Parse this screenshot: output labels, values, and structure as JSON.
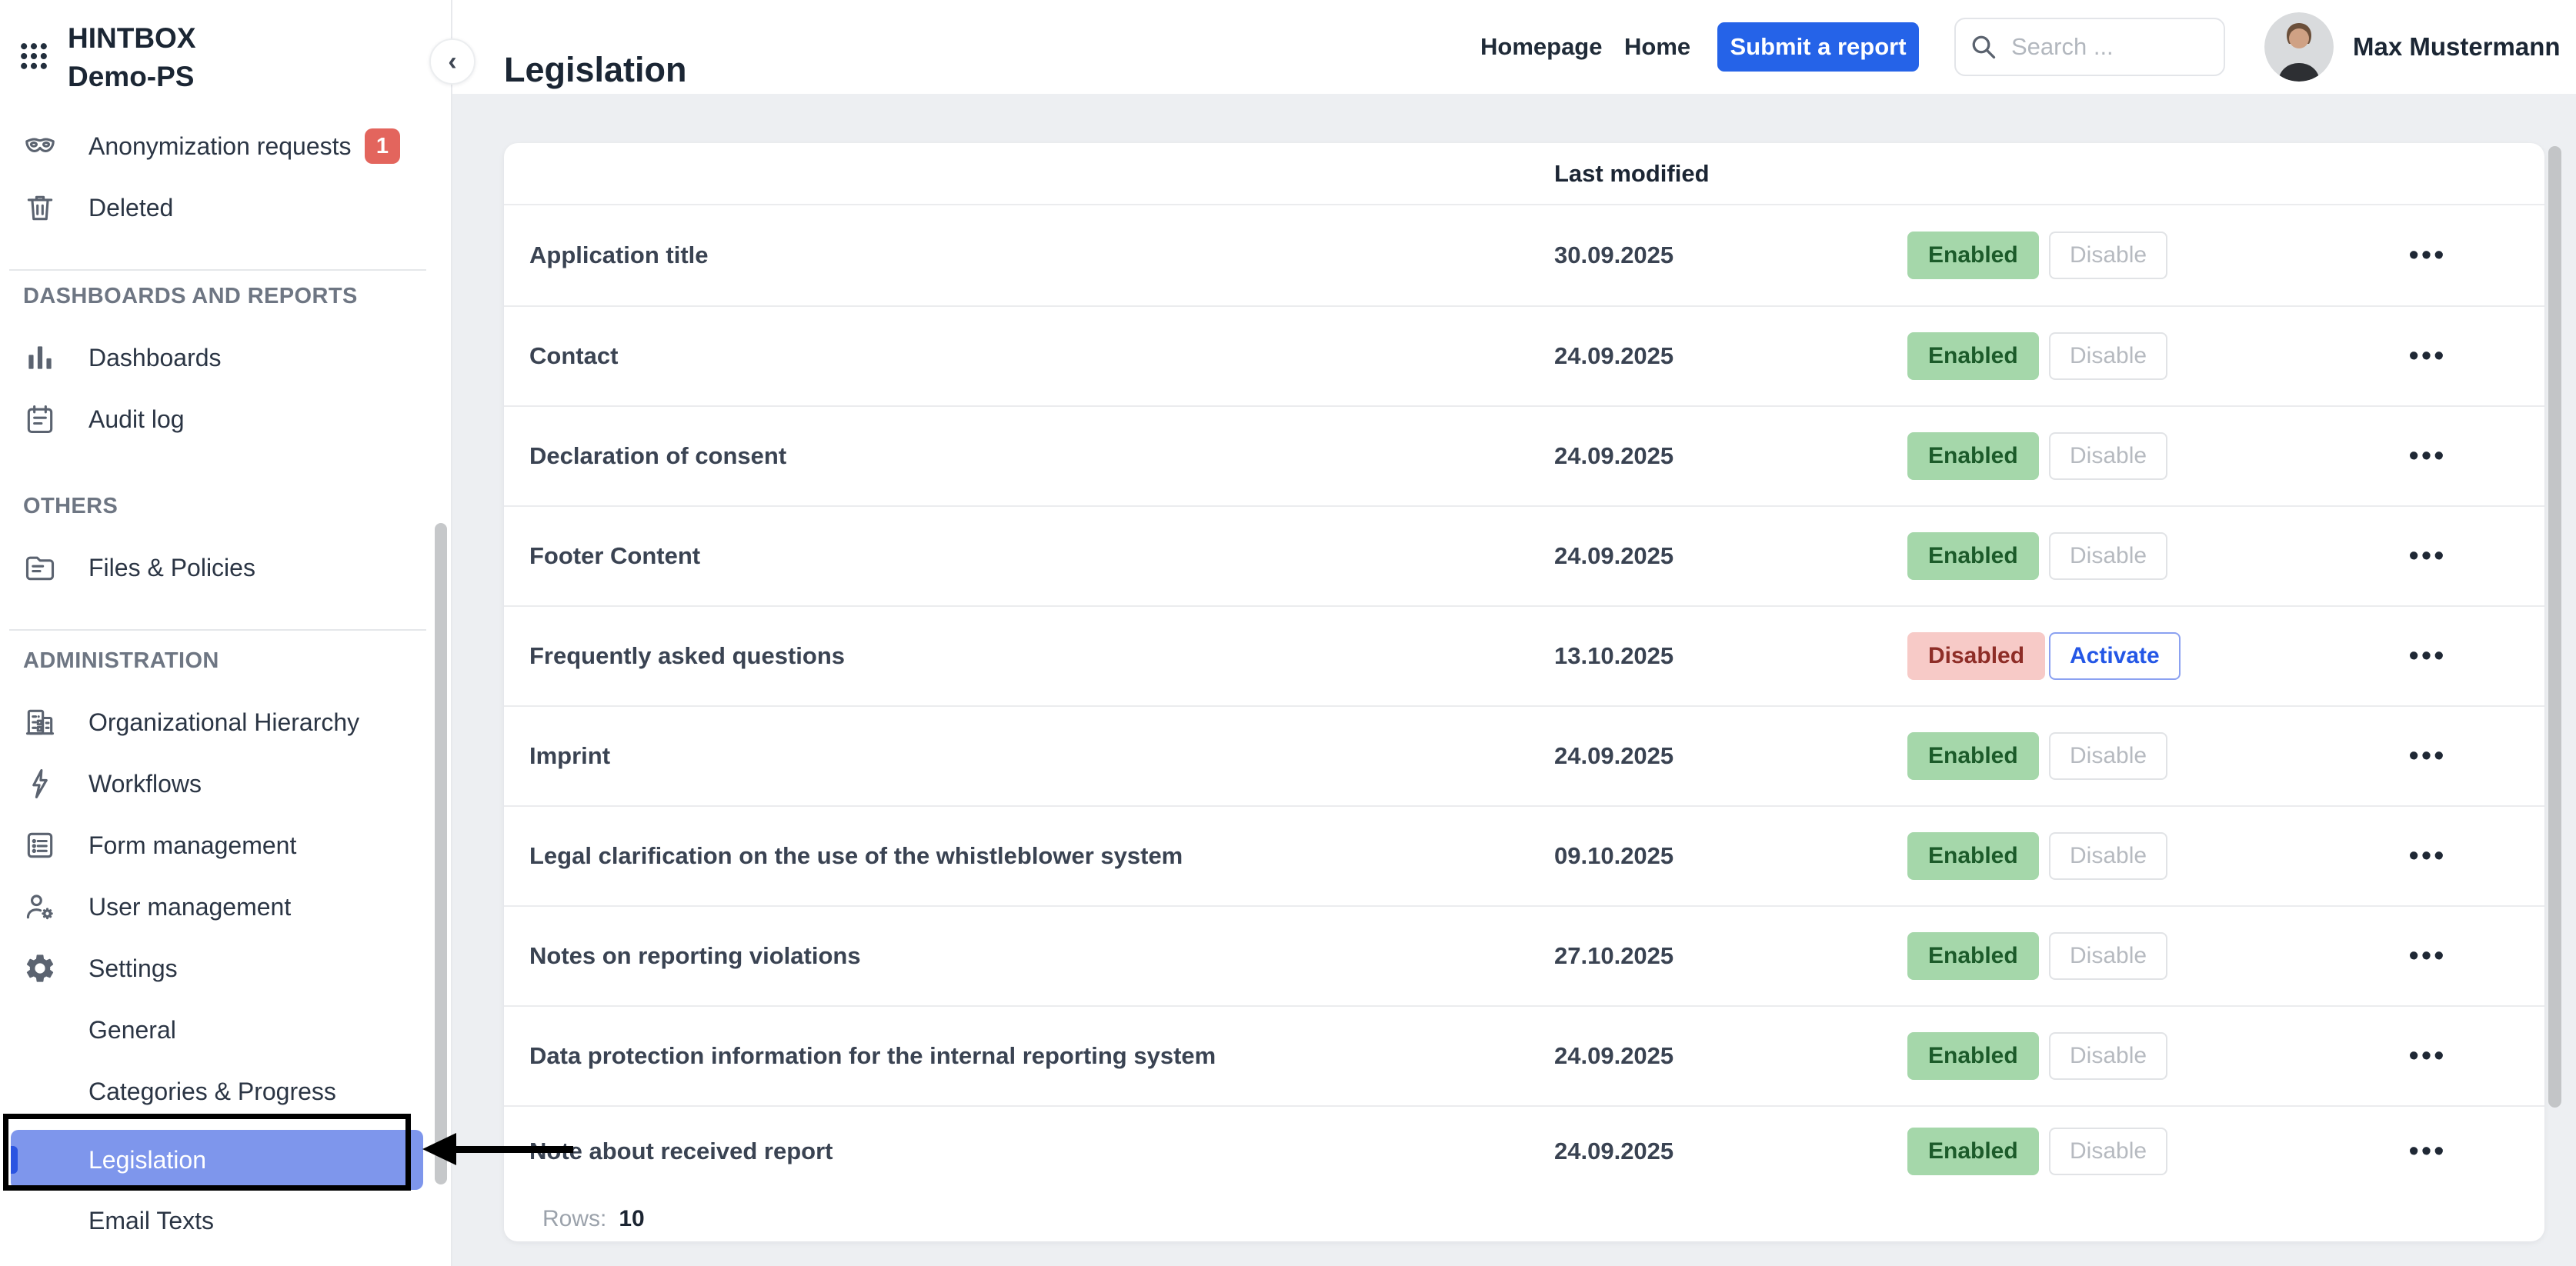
{
  "app": {
    "name": "HINTBOX",
    "workspace": "Demo-PS"
  },
  "sidebar": {
    "groups": [
      {
        "header": null,
        "divider_after": true,
        "items": [
          {
            "id": "anonymization-requests",
            "icon": "mask-icon",
            "label": "Anonymization requests",
            "badge": "1"
          },
          {
            "id": "deleted",
            "icon": "trash-icon",
            "label": "Deleted"
          }
        ]
      },
      {
        "header": "DASHBOARDS AND REPORTS",
        "divider_after": false,
        "items": [
          {
            "id": "dashboards",
            "icon": "bar-chart-icon",
            "label": "Dashboards"
          },
          {
            "id": "audit-log",
            "icon": "audit-log-icon",
            "label": "Audit log"
          }
        ]
      },
      {
        "header": "OTHERS",
        "divider_after": true,
        "items": [
          {
            "id": "files-policies",
            "icon": "folder-icon",
            "label": "Files & Policies"
          }
        ]
      },
      {
        "header": "ADMINISTRATION",
        "divider_after": false,
        "items": [
          {
            "id": "organizational-hierarchy",
            "icon": "building-icon",
            "label": "Organizational Hierarchy"
          },
          {
            "id": "workflows",
            "icon": "bolt-icon",
            "label": "Workflows"
          },
          {
            "id": "form-management",
            "icon": "form-icon",
            "label": "Form management"
          },
          {
            "id": "user-management",
            "icon": "user-gear-icon",
            "label": "User management"
          },
          {
            "id": "settings",
            "icon": "gear-icon",
            "label": "Settings"
          },
          {
            "id": "settings-general",
            "icon": null,
            "label": "General",
            "sub": true
          },
          {
            "id": "settings-categories-progress",
            "icon": null,
            "label": "Categories & Progress",
            "sub": true
          },
          {
            "id": "settings-legislation",
            "icon": null,
            "label": "Legislation",
            "sub": true,
            "active": true
          },
          {
            "id": "settings-email-texts",
            "icon": null,
            "label": "Email Texts",
            "sub": true
          }
        ]
      }
    ]
  },
  "topbar": {
    "title": "Legislation",
    "links": [
      "Homepage",
      "Home"
    ],
    "submit_label": "Submit a report",
    "search_placeholder": "Search ...",
    "user_name": "Max Mustermann"
  },
  "table": {
    "columns": {
      "last_modified": "Last modified"
    },
    "rows": [
      {
        "name": "Application title",
        "last_modified": "30.09.2025",
        "status": "enabled",
        "status_label": "Enabled",
        "action_label": "Disable"
      },
      {
        "name": "Contact",
        "last_modified": "24.09.2025",
        "status": "enabled",
        "status_label": "Enabled",
        "action_label": "Disable"
      },
      {
        "name": "Declaration of consent",
        "last_modified": "24.09.2025",
        "status": "enabled",
        "status_label": "Enabled",
        "action_label": "Disable"
      },
      {
        "name": "Footer Content",
        "last_modified": "24.09.2025",
        "status": "enabled",
        "status_label": "Enabled",
        "action_label": "Disable"
      },
      {
        "name": "Frequently asked questions",
        "last_modified": "13.10.2025",
        "status": "disabled",
        "status_label": "Disabled",
        "action_label": "Activate"
      },
      {
        "name": "Imprint",
        "last_modified": "24.09.2025",
        "status": "enabled",
        "status_label": "Enabled",
        "action_label": "Disable"
      },
      {
        "name": "Legal clarification on the use of the whistleblower system",
        "last_modified": "09.10.2025",
        "status": "enabled",
        "status_label": "Enabled",
        "action_label": "Disable"
      },
      {
        "name": "Notes on reporting violations",
        "last_modified": "27.10.2025",
        "status": "enabled",
        "status_label": "Enabled",
        "action_label": "Disable"
      },
      {
        "name": "Data protection information for the internal reporting system",
        "last_modified": "24.09.2025",
        "status": "enabled",
        "status_label": "Enabled",
        "action_label": "Disable"
      },
      {
        "name": "Note about received report",
        "last_modified": "24.09.2025",
        "status": "enabled",
        "status_label": "Enabled",
        "action_label": "Disable"
      }
    ],
    "row_menu_glyph": "•••",
    "footer": {
      "rows_label": "Rows:",
      "rows_value": "10"
    }
  },
  "collapse_glyph": "‹",
  "colors": {
    "accent_blue": "#2563e8",
    "active_item_bg": "#7e96ec",
    "active_item_indicator": "#2b54e1",
    "enabled_bg": "#a5d7aa",
    "enabled_text": "#1c5b2a",
    "disabled_bg": "#f7cac7",
    "disabled_text": "#8e2d27",
    "activate_border": "#8ba1f1",
    "activate_text": "#2457e6",
    "count_badge_red": "#e3655d"
  }
}
